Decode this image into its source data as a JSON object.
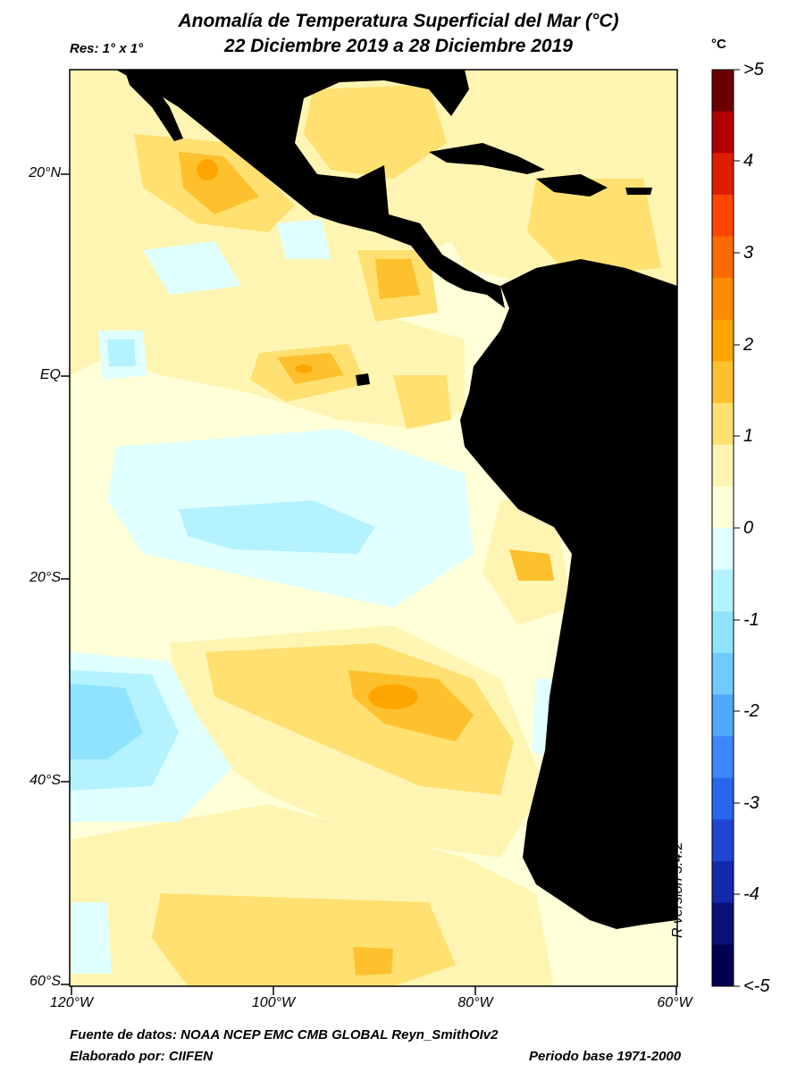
{
  "title": {
    "line1": "Anomalía de Temperatura Superficial del Mar (°C)",
    "line2": "22 Diciembre 2019 a 28 Diciembre 2019"
  },
  "resolution": "Res: 1° x 1°",
  "axes": {
    "lat_labels": [
      "20°N",
      "EQ",
      "20°S",
      "40°S",
      "60°S"
    ],
    "lon_labels": [
      "120°W",
      "100°W",
      "80°W",
      "60°W"
    ]
  },
  "colorbar": {
    "unit": "°C",
    "labels": [
      ">5",
      "4",
      "3",
      "2",
      "1",
      "0",
      "-1",
      "-2",
      "-3",
      "-4",
      "<-5"
    ],
    "colors": [
      "#6b0000",
      "#b20000",
      "#dc1e00",
      "#ff4400",
      "#ff6a00",
      "#ff8c00",
      "#ffa500",
      "#ffc02e",
      "#ffe070",
      "#fff5b3",
      "#ffffd8",
      "#e0ffff",
      "#b4f2ff",
      "#8fe3ff",
      "#6ecbff",
      "#4fa8ff",
      "#3a87ff",
      "#2866ee",
      "#1e46d2",
      "#1428aa",
      "#0a1078",
      "#000050"
    ]
  },
  "colors": {
    "land": "#000000",
    "ocean_base": "#ffffd8",
    "frame": "#000000"
  },
  "footer": {
    "source": "Fuente de datos: NOAA NCEP EMC CMB GLOBAL Reyn_SmithOIv2",
    "author": "Elaborado por: CIIFEN",
    "period": "Periodo base 1971-2000"
  },
  "r_version": "R version 3.4.2"
}
